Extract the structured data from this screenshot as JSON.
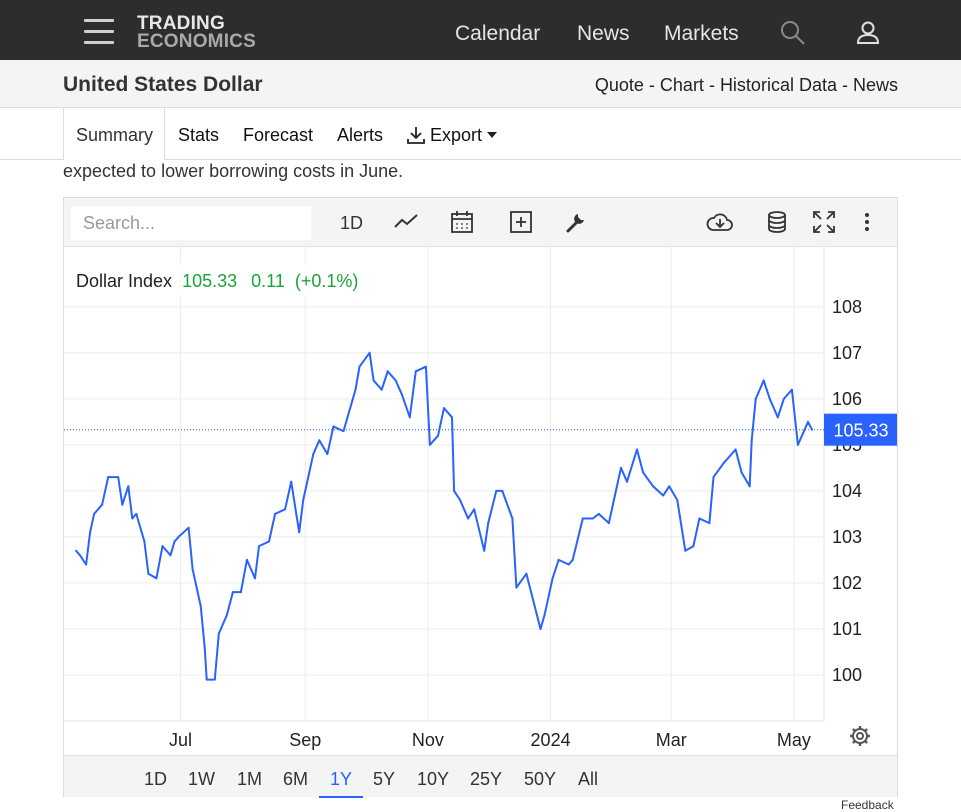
{
  "header": {
    "logo_line1": "TRADING",
    "logo_line2": "ECONOMICS",
    "nav": [
      "Calendar",
      "News",
      "Markets"
    ]
  },
  "subheader": {
    "title": "United States Dollar",
    "links": [
      "Quote",
      "Chart",
      "Historical Data",
      "News"
    ],
    "separator": " - "
  },
  "tabs": [
    "Summary",
    "Stats",
    "Forecast",
    "Alerts",
    "Export"
  ],
  "snippet": "expected to lower borrowing costs in June.",
  "toolbar": {
    "search_placeholder": "Search...",
    "interval": "1D"
  },
  "legend": {
    "name": "Dollar Index",
    "value": "105.33",
    "change": "0.11",
    "change_pct": "(+0.1%)"
  },
  "last_price_label": "105.33",
  "ranges": [
    "1D",
    "1W",
    "1M",
    "6M",
    "1Y",
    "5Y",
    "10Y",
    "25Y",
    "50Y",
    "All"
  ],
  "active_range": "1Y",
  "feedback": "Feedback",
  "colors": {
    "line": "#2962ff",
    "up": "#1aa33a",
    "accent": "#2962ff",
    "topbar": "#2d2d2d"
  },
  "chart_data": {
    "type": "line",
    "title": "",
    "xlabel": "",
    "ylabel": "",
    "series": [
      {
        "name": "Dollar Index",
        "x": [
          "2023-05-10",
          "2023-05-12",
          "2023-05-15",
          "2023-05-17",
          "2023-05-19",
          "2023-05-23",
          "2023-05-26",
          "2023-05-31",
          "2023-06-02",
          "2023-06-05",
          "2023-06-07",
          "2023-06-09",
          "2023-06-13",
          "2023-06-15",
          "2023-06-19",
          "2023-06-22",
          "2023-06-26",
          "2023-06-28",
          "2023-06-30",
          "2023-07-05",
          "2023-07-07",
          "2023-07-11",
          "2023-07-13",
          "2023-07-14",
          "2023-07-18",
          "2023-07-20",
          "2023-07-24",
          "2023-07-27",
          "2023-07-31",
          "2023-08-03",
          "2023-08-07",
          "2023-08-09",
          "2023-08-14",
          "2023-08-17",
          "2023-08-22",
          "2023-08-25",
          "2023-08-29",
          "2023-08-31",
          "2023-09-05",
          "2023-09-08",
          "2023-09-12",
          "2023-09-15",
          "2023-09-20",
          "2023-09-22",
          "2023-09-26",
          "2023-09-28",
          "2023-10-03",
          "2023-10-05",
          "2023-10-09",
          "2023-10-12",
          "2023-10-16",
          "2023-10-19",
          "2023-10-23",
          "2023-10-26",
          "2023-10-31",
          "2023-11-02",
          "2023-11-06",
          "2023-11-09",
          "2023-11-13",
          "2023-11-14",
          "2023-11-17",
          "2023-11-21",
          "2023-11-24",
          "2023-11-29",
          "2023-12-01",
          "2023-12-05",
          "2023-12-08",
          "2023-12-13",
          "2023-12-15",
          "2023-12-20",
          "2023-12-27",
          "2023-12-29",
          "2024-01-02",
          "2024-01-05",
          "2024-01-10",
          "2024-01-12",
          "2024-01-17",
          "2024-01-22",
          "2024-01-25",
          "2024-01-30",
          "2024-02-02",
          "2024-02-05",
          "2024-02-08",
          "2024-02-13",
          "2024-02-16",
          "2024-02-21",
          "2024-02-26",
          "2024-02-29",
          "2024-03-04",
          "2024-03-08",
          "2024-03-12",
          "2024-03-15",
          "2024-03-20",
          "2024-03-22",
          "2024-03-27",
          "2024-04-02",
          "2024-04-05",
          "2024-04-09",
          "2024-04-10",
          "2024-04-12",
          "2024-04-16",
          "2024-04-19",
          "2024-04-23",
          "2024-04-26",
          "2024-04-30",
          "2024-05-02",
          "2024-05-03",
          "2024-05-06",
          "2024-05-08",
          "2024-05-10"
        ],
        "values": [
          102.7,
          102.6,
          102.4,
          103.1,
          103.5,
          103.7,
          104.3,
          104.3,
          103.7,
          104.1,
          103.4,
          103.5,
          102.9,
          102.2,
          102.1,
          102.8,
          102.6,
          102.9,
          103.0,
          103.2,
          102.3,
          101.5,
          100.6,
          99.9,
          99.9,
          100.9,
          101.3,
          101.8,
          101.8,
          102.5,
          102.1,
          102.8,
          102.9,
          103.5,
          103.6,
          104.2,
          103.1,
          103.8,
          104.8,
          105.1,
          104.8,
          105.4,
          105.3,
          105.6,
          106.2,
          106.7,
          107.0,
          106.4,
          106.2,
          106.6,
          106.4,
          106.1,
          105.6,
          106.6,
          106.7,
          105.0,
          105.2,
          105.8,
          105.6,
          104.0,
          103.8,
          103.4,
          103.6,
          102.7,
          103.3,
          104.0,
          104.0,
          103.4,
          101.9,
          102.2,
          101.0,
          101.3,
          102.1,
          102.5,
          102.4,
          102.5,
          103.4,
          103.4,
          103.5,
          103.3,
          103.9,
          104.5,
          104.2,
          104.9,
          104.4,
          104.1,
          103.9,
          104.1,
          103.8,
          102.7,
          102.8,
          103.4,
          103.3,
          104.3,
          104.6,
          104.9,
          104.4,
          104.1,
          105.1,
          106.0,
          106.4,
          106.0,
          105.6,
          106.0,
          106.2,
          105.4,
          105.0,
          105.3,
          105.5,
          105.33
        ]
      }
    ],
    "x_ticks": [
      "Jul",
      "Sep",
      "Nov",
      "2024",
      "Mar",
      "May"
    ],
    "y_ticks": [
      100,
      101,
      102,
      103,
      104,
      105,
      106,
      107,
      108
    ],
    "ylim": [
      99.0,
      109.3
    ],
    "last_value": 105.33,
    "grid": true,
    "legend_position": "top-left"
  }
}
